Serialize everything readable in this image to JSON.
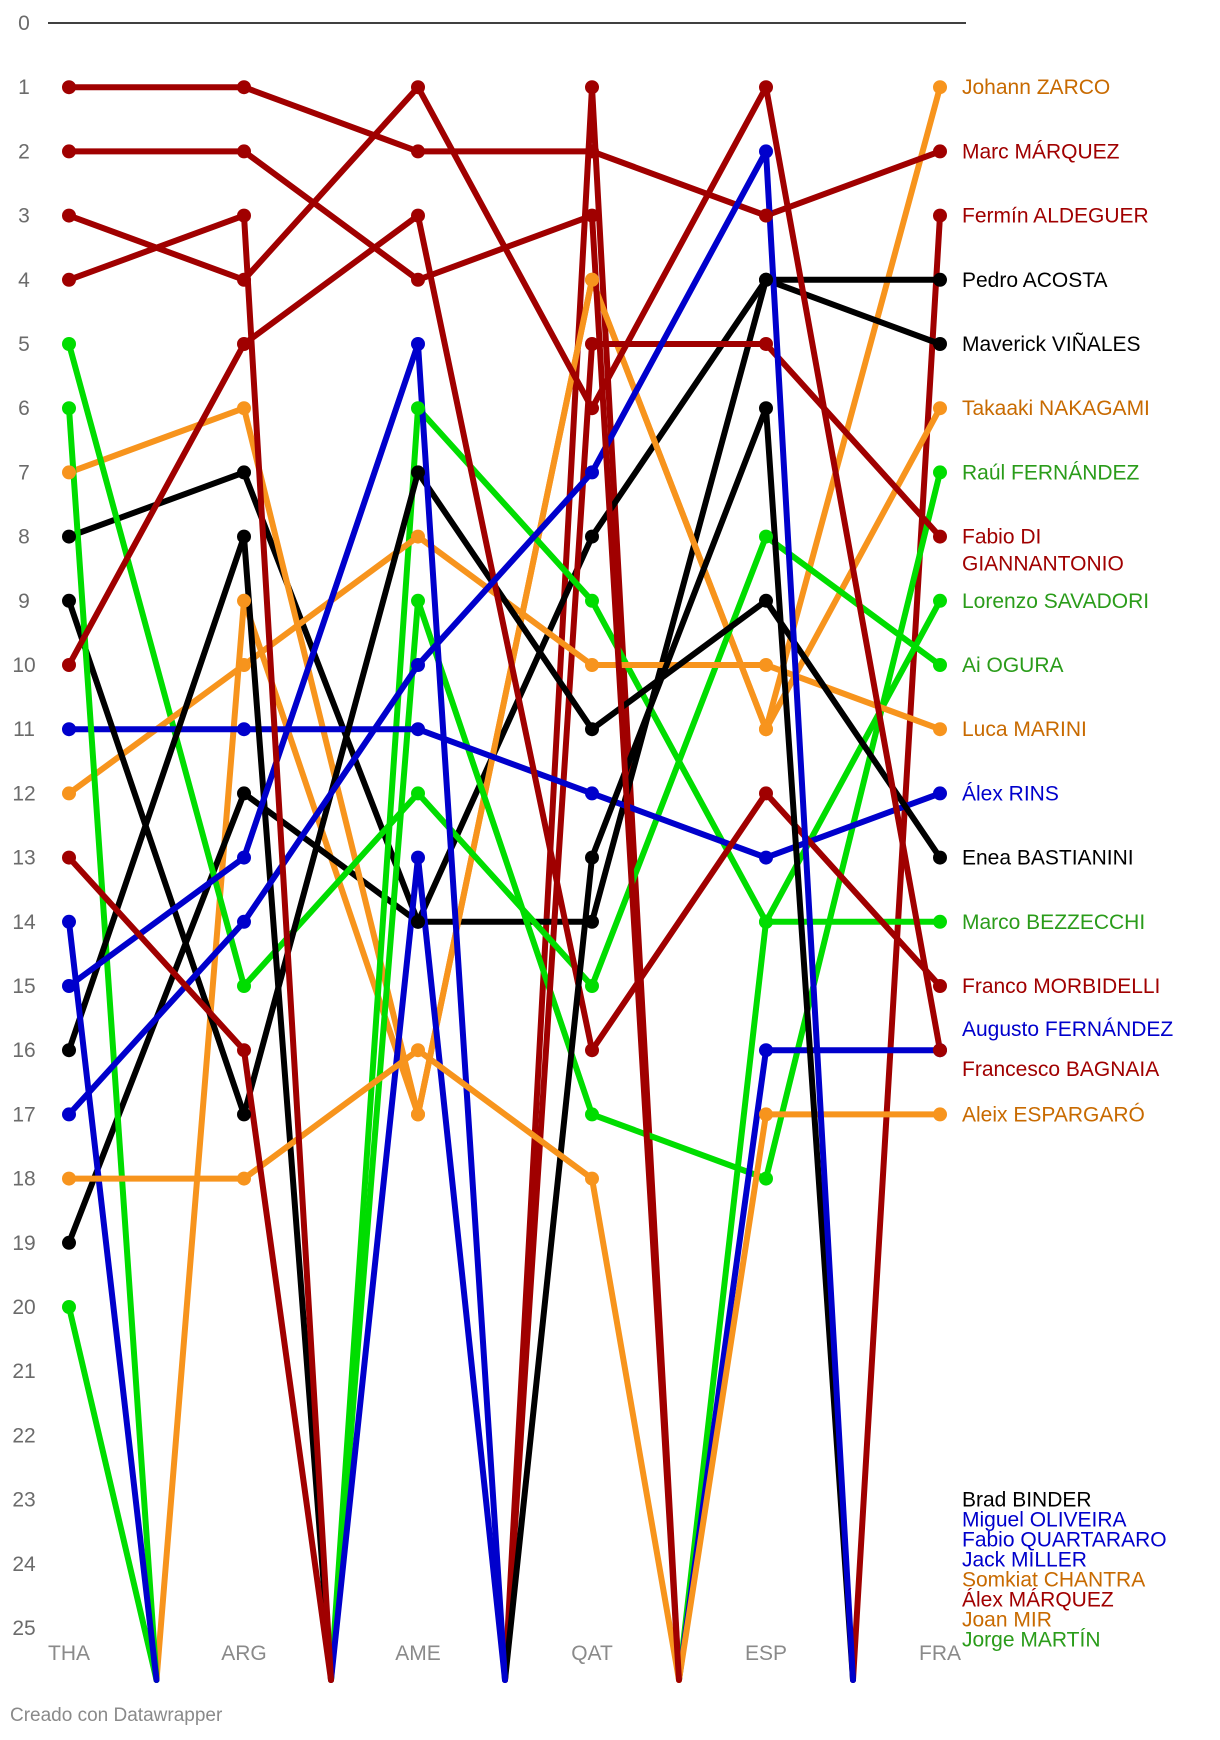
{
  "footer": "Creado con Datawrapper",
  "chart_data": {
    "type": "line",
    "subtype": "bump",
    "x": [
      "THA",
      "ARG",
      "AME",
      "QAT",
      "ESP",
      "FRA"
    ],
    "ylim": [
      0,
      25
    ],
    "y_reversed": true,
    "y_ticks": [
      0,
      1,
      2,
      3,
      4,
      5,
      6,
      7,
      8,
      9,
      10,
      11,
      12,
      13,
      14,
      15,
      16,
      17,
      18,
      19,
      20,
      21,
      22,
      23,
      24,
      25
    ],
    "note": "",
    "series": [
      {
        "name": "Johann ZARCO",
        "color": "#f7941d",
        "label_color": "#c86a00",
        "values": [
          null,
          9,
          17,
          4,
          11,
          1
        ]
      },
      {
        "name": "Marc MÁRQUEZ",
        "color": "#a00000",
        "label_color": "#a00000",
        "values": [
          1,
          1,
          2,
          2,
          3,
          2
        ]
      },
      {
        "name": "Fermín ALDEGUER",
        "color": "#a00000",
        "label_color": "#a00000",
        "values": [
          null,
          null,
          null,
          1,
          null,
          3
        ]
      },
      {
        "name": "Pedro ACOSTA",
        "color": "#000000",
        "label_color": "#000000",
        "values": [
          8,
          7,
          14,
          14,
          4,
          4
        ]
      },
      {
        "name": "Maverick VIÑALES",
        "color": "#000000",
        "label_color": "#000000",
        "values": [
          19,
          12,
          14,
          8,
          4,
          5
        ]
      },
      {
        "name": "Takaaki NAKAGAMI",
        "color": "#f7941d",
        "label_color": "#c86a00",
        "values": [
          7,
          6,
          17,
          4,
          11,
          6
        ]
      },
      {
        "name": "Raúl FERNÁNDEZ",
        "color": "#00dd00",
        "label_color": "#2a9c1a",
        "values": [
          20,
          null,
          9,
          17,
          18,
          7
        ]
      },
      {
        "name": "Fabio DI GIANNANTONIO",
        "color": "#a00000",
        "label_color": "#a00000",
        "values": [
          null,
          null,
          null,
          5,
          5,
          8
        ]
      },
      {
        "name": "Lorenzo SAVADORI",
        "color": "#00dd00",
        "label_color": "#2a9c1a",
        "values": [
          null,
          null,
          6,
          9,
          14,
          9
        ]
      },
      {
        "name": "Ai OGURA",
        "color": "#00dd00",
        "label_color": "#2a9c1a",
        "values": [
          5,
          15,
          12,
          15,
          8,
          10
        ]
      },
      {
        "name": "Luca MARINI",
        "color": "#f7941d",
        "label_color": "#c86a00",
        "values": [
          12,
          10,
          8,
          10,
          10,
          11
        ]
      },
      {
        "name": "Álex RINS",
        "color": "#0000cc",
        "label_color": "#0000cc",
        "values": [
          11,
          11,
          11,
          12,
          13,
          12
        ]
      },
      {
        "name": "Enea BASTIANINI",
        "color": "#000000",
        "label_color": "#000000",
        "values": [
          9,
          17,
          7,
          11,
          9,
          13
        ]
      },
      {
        "name": "Marco BEZZECCHI",
        "color": "#00dd00",
        "label_color": "#2a9c1a",
        "values": [
          6,
          null,
          null,
          null,
          14,
          14
        ]
      },
      {
        "name": "Franco MORBIDELLI",
        "color": "#a00000",
        "label_color": "#a00000",
        "values": [
          10,
          5,
          3,
          16,
          12,
          15
        ]
      },
      {
        "name": "Augusto FERNÁNDEZ",
        "color": "#0000cc",
        "label_color": "#0000cc",
        "values": [
          null,
          null,
          null,
          null,
          16,
          16
        ]
      },
      {
        "name": "Francesco BAGNAIA",
        "color": "#a00000",
        "label_color": "#a00000",
        "values": [
          3,
          4,
          1,
          6,
          1,
          16
        ]
      },
      {
        "name": "Aleix ESPARGARÓ",
        "color": "#f7941d",
        "label_color": "#c86a00",
        "values": [
          null,
          null,
          null,
          null,
          17,
          17
        ]
      },
      {
        "name": "Brad BINDER",
        "color": "#000000",
        "label_color": "#000000",
        "values": [
          16,
          8,
          null,
          13,
          6,
          null
        ]
      },
      {
        "name": "Miguel OLIVEIRA",
        "color": "#0000cc",
        "label_color": "#0000cc",
        "values": [
          17,
          14,
          10,
          7,
          2,
          null
        ]
      },
      {
        "name": "Fabio QUARTARARO",
        "color": "#0000cc",
        "label_color": "#0000cc",
        "values": [
          15,
          13,
          5,
          null,
          null,
          null
        ]
      },
      {
        "name": "Jack MILLER",
        "color": "#0000cc",
        "label_color": "#0000cc",
        "values": [
          14,
          null,
          13,
          null,
          null,
          null
        ]
      },
      {
        "name": "Somkiat CHANTRA",
        "color": "#f7941d",
        "label_color": "#c86a00",
        "values": [
          18,
          18,
          16,
          18,
          null,
          null
        ]
      },
      {
        "name": "Álex MÁRQUEZ",
        "color": "#a00000",
        "label_color": "#a00000",
        "values": [
          2,
          2,
          4,
          3,
          null,
          null
        ]
      },
      {
        "name": "Joan MIR",
        "color": "#a00000",
        "label_color": "#c86a00",
        "values": [
          4,
          3,
          null,
          null,
          null,
          null
        ]
      },
      {
        "name": "Jorge MARTÍN",
        "color": "#a00000",
        "label_color": "#2a9c1a",
        "values": [
          13,
          16,
          null,
          null,
          null,
          null
        ]
      }
    ]
  }
}
